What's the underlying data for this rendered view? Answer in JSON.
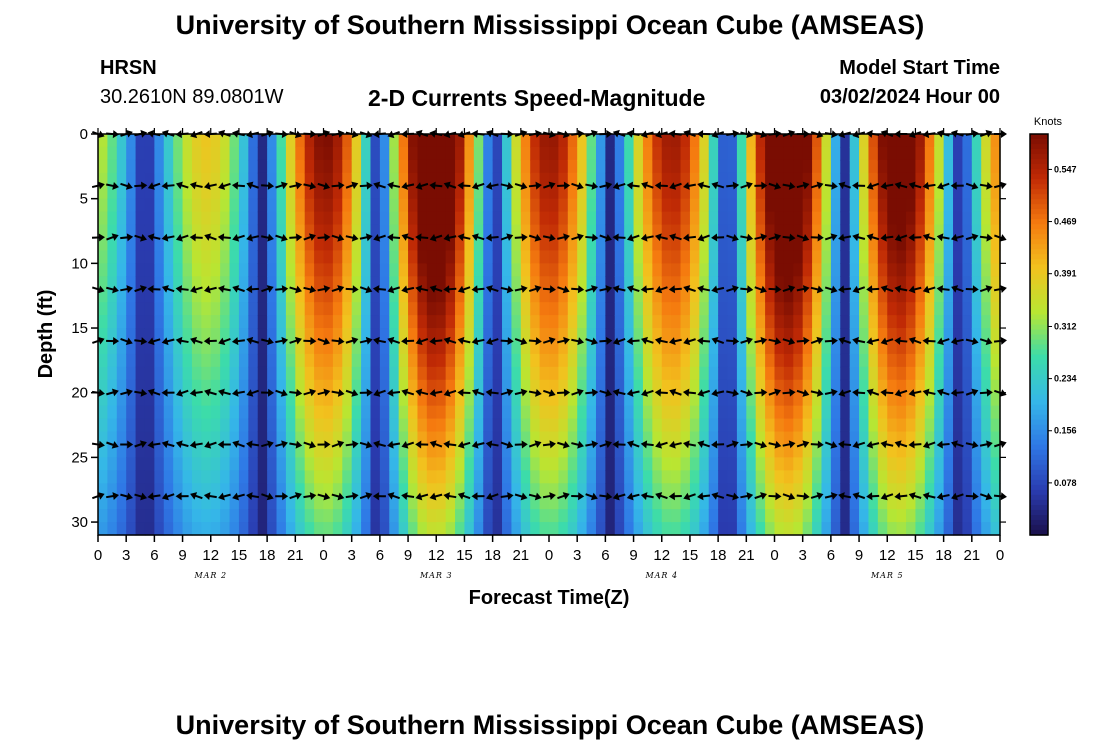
{
  "header": {
    "title": "University of Southern Mississippi Ocean Cube (AMSEAS)",
    "station": "HRSN",
    "coords": "30.2610N  89.0801W",
    "subtitle": "2-D Currents Speed-Magnitude",
    "model_label": "Model Start Time",
    "model_time": "03/02/2024 Hour 00"
  },
  "footer": {
    "title": "University of Southern Mississippi Ocean Cube (AMSEAS)"
  },
  "chart_data": {
    "type": "heatmap",
    "title": "2-D Currents Speed-Magnitude",
    "xlabel": "Forecast Time(Z)",
    "ylabel": "Depth (ft)",
    "colorbar_label": "Knots",
    "x_range_hours": [
      0,
      96
    ],
    "y_range_ft": [
      0,
      31
    ],
    "x_ticks": [
      "0",
      "3",
      "6",
      "9",
      "12",
      "15",
      "18",
      "21",
      "0",
      "3",
      "6",
      "9",
      "12",
      "15",
      "18",
      "21",
      "0",
      "3",
      "6",
      "9",
      "12",
      "15",
      "18",
      "21",
      "0",
      "3",
      "6",
      "9",
      "12",
      "15",
      "18",
      "21",
      "0"
    ],
    "y_ticks": [
      0,
      5,
      10,
      15,
      20,
      25,
      30
    ],
    "date_labels": [
      {
        "label": "MAR 2",
        "hour": 12
      },
      {
        "label": "MAR 3",
        "hour": 36
      },
      {
        "label": "MAR 4",
        "hour": 60
      },
      {
        "label": "MAR 5",
        "hour": 84
      }
    ],
    "colorbar_ticks": [
      "0.547",
      "0.469",
      "0.391",
      "0.312",
      "0.234",
      "0.156",
      "0.078"
    ],
    "colorbar_tick_values": [
      0.547,
      0.469,
      0.391,
      0.312,
      0.234,
      0.156,
      0.078
    ],
    "colorbar_range": [
      0.0,
      0.6
    ],
    "vector_depths_ft": [
      0,
      4,
      8,
      12,
      16,
      20,
      24,
      28
    ],
    "colormap": [
      "#1a0f4a",
      "#2a3cb0",
      "#2f78e6",
      "#35b7e8",
      "#3cdcaa",
      "#b8e632",
      "#f2c21e",
      "#f57a0f",
      "#c02a05",
      "#7a0d02"
    ]
  }
}
